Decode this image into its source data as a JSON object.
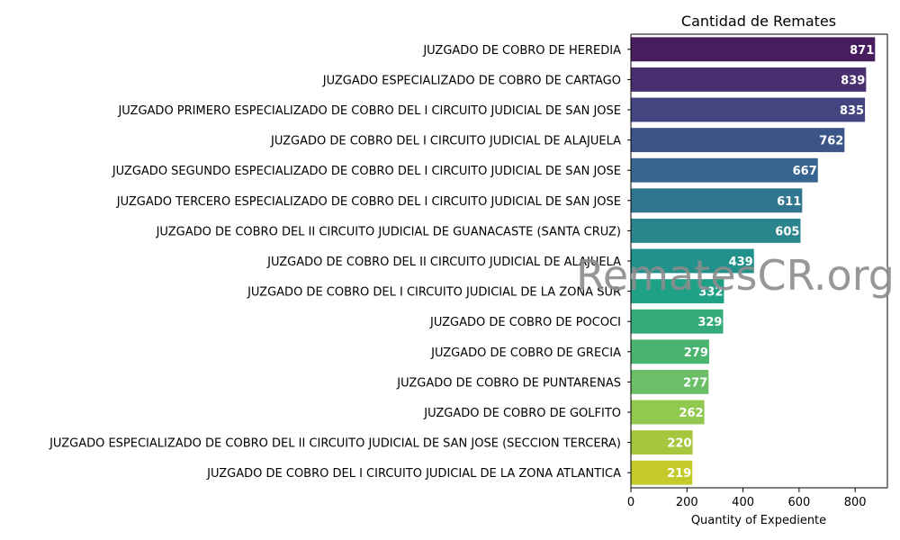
{
  "chart_data": {
    "type": "bar",
    "orientation": "horizontal",
    "title": "Cantidad de Remates",
    "xlabel": "Quantity of Expediente",
    "ylabel": "",
    "xlim": [
      0,
      915
    ],
    "xticks": [
      0,
      200,
      400,
      600,
      800
    ],
    "categories": [
      "JUZGADO DE COBRO DE HEREDIA",
      "JUZGADO ESPECIALIZADO DE COBRO DE CARTAGO",
      "JUZGADO PRIMERO ESPECIALIZADO DE COBRO DEL I CIRCUITO JUDICIAL DE SAN JOSE",
      "JUZGADO DE COBRO DEL I CIRCUITO JUDICIAL DE ALAJUELA",
      "JUZGADO SEGUNDO ESPECIALIZADO DE COBRO DEL I CIRCUITO JUDICIAL DE SAN JOSE",
      "JUZGADO TERCERO ESPECIALIZADO DE COBRO DEL I CIRCUITO JUDICIAL DE SAN JOSE",
      "JUZGADO DE COBRO DEL II CIRCUITO JUDICIAL DE GUANACASTE (SANTA CRUZ)",
      "JUZGADO DE COBRO DEL II CIRCUITO JUDICIAL DE ALAJUELA",
      "JUZGADO DE COBRO DEL I CIRCUITO JUDICIAL DE LA ZONA SUR",
      "JUZGADO DE COBRO DE POCOCI",
      "JUZGADO DE COBRO DE GRECIA",
      "JUZGADO DE COBRO DE PUNTARENAS",
      "JUZGADO DE COBRO DE GOLFITO",
      "JUZGADO ESPECIALIZADO DE COBRO DEL II CIRCUITO JUDICIAL DE SAN JOSE (SECCION TERCERA)",
      "JUZGADO DE COBRO DEL I CIRCUITO JUDICIAL DE LA ZONA ATLANTICA"
    ],
    "values": [
      871,
      839,
      835,
      762,
      667,
      611,
      605,
      439,
      332,
      329,
      279,
      277,
      262,
      220,
      219
    ],
    "colors": [
      "#481c5e",
      "#472f70",
      "#424580",
      "#3c5589",
      "#366690",
      "#30768e",
      "#2a858d",
      "#21918c",
      "#1fa187",
      "#35ab7c",
      "#48b46e",
      "#6abf67",
      "#90c94e",
      "#a6c63d",
      "#c4ca29"
    ],
    "legend": "none",
    "grid": false
  },
  "watermark": "RematesCR.org"
}
